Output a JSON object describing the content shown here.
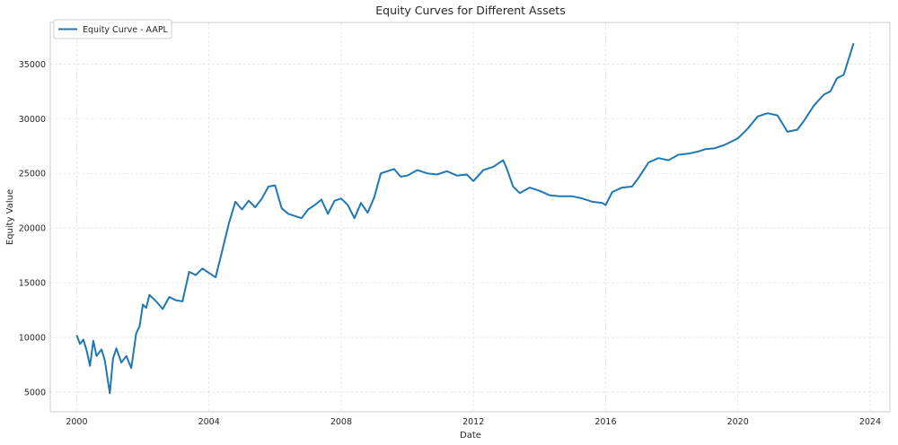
{
  "chart_data": {
    "type": "line",
    "title": "Equity Curves for Different Assets",
    "xlabel": "Date",
    "ylabel": "Equity Value",
    "xlim": [
      1999.2,
      2024.6
    ],
    "ylim": [
      3200,
      38800
    ],
    "x_ticks": [
      2000,
      2004,
      2008,
      2012,
      2016,
      2020,
      2024
    ],
    "x_tick_labels": [
      "2000",
      "2004",
      "2008",
      "2012",
      "2016",
      "2020",
      "2024"
    ],
    "y_ticks": [
      5000,
      10000,
      15000,
      20000,
      25000,
      30000,
      35000
    ],
    "y_tick_labels": [
      "5000",
      "10000",
      "15000",
      "20000",
      "25000",
      "30000",
      "35000"
    ],
    "grid": true,
    "legend_position": "top-left",
    "series": [
      {
        "name": "Equity Curve - AAPL",
        "color": "#1f77b4",
        "x": [
          2000.0,
          2000.1,
          2000.2,
          2000.3,
          2000.4,
          2000.5,
          2000.6,
          2000.75,
          2000.85,
          2000.95,
          2001.0,
          2001.1,
          2001.2,
          2001.35,
          2001.5,
          2001.65,
          2001.8,
          2001.9,
          2002.0,
          2002.1,
          2002.2,
          2002.4,
          2002.6,
          2002.8,
          2003.0,
          2003.2,
          2003.4,
          2003.6,
          2003.8,
          2004.0,
          2004.2,
          2004.4,
          2004.6,
          2004.8,
          2005.0,
          2005.2,
          2005.4,
          2005.6,
          2005.8,
          2006.0,
          2006.2,
          2006.4,
          2006.6,
          2006.8,
          2007.0,
          2007.2,
          2007.4,
          2007.6,
          2007.8,
          2008.0,
          2008.2,
          2008.4,
          2008.6,
          2008.8,
          2009.0,
          2009.2,
          2009.4,
          2009.6,
          2009.8,
          2010.0,
          2010.3,
          2010.6,
          2010.9,
          2011.2,
          2011.5,
          2011.8,
          2012.0,
          2012.3,
          2012.6,
          2012.9,
          2013.0,
          2013.2,
          2013.4,
          2013.7,
          2014.0,
          2014.3,
          2014.6,
          2015.0,
          2015.3,
          2015.6,
          2015.9,
          2016.0,
          2016.2,
          2016.5,
          2016.8,
          2017.0,
          2017.3,
          2017.6,
          2017.9,
          2018.2,
          2018.5,
          2018.8,
          2019.0,
          2019.3,
          2019.6,
          2019.8,
          2020.0,
          2020.3,
          2020.6,
          2020.9,
          2021.2,
          2021.5,
          2021.8,
          2022.0,
          2022.3,
          2022.6,
          2022.8,
          2023.0,
          2023.2,
          2023.5
        ],
        "y": [
          10200,
          9400,
          9800,
          8800,
          7400,
          9700,
          8300,
          8900,
          7900,
          5900,
          4900,
          8100,
          9000,
          7700,
          8300,
          7200,
          10400,
          11000,
          13000,
          12700,
          13900,
          13300,
          12600,
          13700,
          13400,
          13300,
          16000,
          15700,
          16300,
          15900,
          15500,
          17900,
          20400,
          22400,
          21700,
          22500,
          21900,
          22700,
          23800,
          23900,
          21800,
          21300,
          21100,
          20900,
          21700,
          22100,
          22600,
          21300,
          22500,
          22700,
          22100,
          20900,
          22300,
          21400,
          22800,
          25000,
          25200,
          25400,
          24700,
          24800,
          25300,
          25000,
          24900,
          25200,
          24800,
          24900,
          24300,
          25300,
          25600,
          26200,
          25500,
          23800,
          23200,
          23700,
          23400,
          23000,
          22900,
          22900,
          22700,
          22400,
          22300,
          22100,
          23300,
          23700,
          23800,
          24600,
          26000,
          26400,
          26200,
          26700,
          26800,
          27000,
          27200,
          27300,
          27600,
          27900,
          28200,
          29100,
          30200,
          30500,
          30300,
          28800,
          29000,
          29800,
          31200,
          32200,
          32500,
          33700,
          34000,
          36900
        ]
      }
    ]
  }
}
